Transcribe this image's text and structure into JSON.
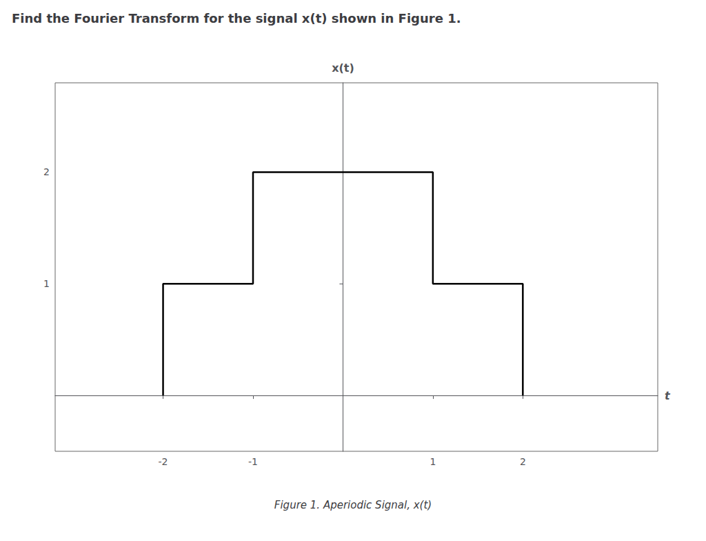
{
  "chart_data": {
    "type": "line",
    "title": "Find the Fourier Transform for the signal x(t) shown in Figure 1.",
    "caption": "Figure 1. Aperiodic Signal, x(t)",
    "x_label": "t",
    "y_label": "x(t)",
    "x": [
      -2,
      -2,
      -1,
      -1,
      1,
      1,
      2,
      2
    ],
    "values": [
      0,
      1,
      1,
      2,
      2,
      1,
      1,
      0
    ],
    "color": "#000000",
    "xlim": [
      -3.2,
      3.5
    ],
    "ylim": [
      -0.5,
      2.8
    ],
    "xticks": [
      -2,
      -1,
      1,
      2
    ],
    "yticks": [
      1,
      2
    ],
    "grid": false
  }
}
